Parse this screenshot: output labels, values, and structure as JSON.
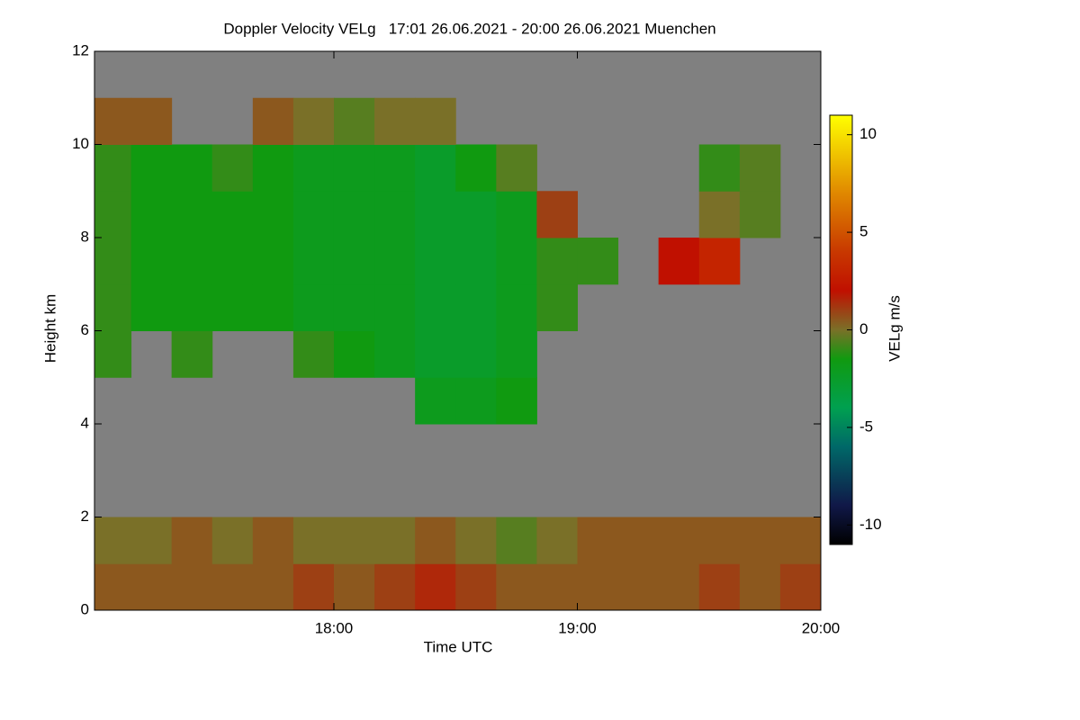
{
  "chart_data": {
    "type": "heatmap",
    "title": "Doppler Velocity VELg   17:01 26.06.2021 - 20:00 26.06.2021 Muenchen",
    "x_label": "Time UTC",
    "y_label": "Height km",
    "colorbar_label": "VELg m/s",
    "xlim": [
      17.0167,
      20.0
    ],
    "xticks": [
      {
        "value": 18,
        "label": "18:00"
      },
      {
        "value": 19,
        "label": "19:00"
      },
      {
        "value": 20,
        "label": "20:00"
      }
    ],
    "ylim": [
      0,
      12
    ],
    "yticks": [
      0,
      2,
      4,
      6,
      8,
      10,
      12
    ],
    "clim": [
      -11,
      11
    ],
    "cticks": [
      -10,
      -5,
      0,
      5,
      10
    ],
    "background": "#808080",
    "colorscale": [
      [
        -11,
        "#000000"
      ],
      [
        -9,
        "#101848"
      ],
      [
        -6,
        "#006868"
      ],
      [
        -4,
        "#00a050"
      ],
      [
        -1.5,
        "#109a10"
      ],
      [
        0,
        "#7a7028"
      ],
      [
        2,
        "#c01000"
      ],
      [
        4,
        "#c83800"
      ],
      [
        7,
        "#e08800"
      ],
      [
        11,
        "#ffff00"
      ]
    ],
    "x_edges": [
      17.0167,
      17.1667,
      17.3333,
      17.5,
      17.6667,
      17.8333,
      18,
      18.1667,
      18.3333,
      18.5,
      18.6667,
      18.8333,
      19,
      19.1667,
      19.3333,
      19.5,
      19.6667,
      19.8333,
      20
    ],
    "y_edges": [
      0,
      1,
      2,
      3,
      4,
      5,
      6,
      7,
      8,
      9,
      10,
      11,
      12
    ],
    "values": [
      [
        0.5,
        0.5,
        0.5,
        0.5,
        0.5,
        1,
        0.5,
        1,
        1.5,
        1,
        0.5,
        0.5,
        0.5,
        0.5,
        0.5,
        1,
        0.5,
        1
      ],
      [
        0,
        0,
        0.5,
        0,
        0.5,
        0,
        0,
        0,
        0.5,
        0,
        -0.5,
        0,
        0.5,
        0.5,
        0.5,
        0.5,
        0.5,
        0.5
      ],
      [
        null,
        null,
        null,
        null,
        null,
        null,
        null,
        null,
        null,
        null,
        null,
        null,
        null,
        null,
        null,
        null,
        null,
        null
      ],
      [
        null,
        null,
        null,
        null,
        null,
        null,
        null,
        null,
        null,
        null,
        null,
        null,
        null,
        null,
        null,
        null,
        null,
        null
      ],
      [
        null,
        null,
        null,
        null,
        null,
        null,
        null,
        null,
        -2,
        -2,
        -1.5,
        null,
        null,
        null,
        null,
        null,
        null,
        null
      ],
      [
        -1,
        null,
        -1,
        null,
        null,
        -1,
        -1.5,
        -2,
        -2.5,
        -2.5,
        -2,
        null,
        null,
        null,
        null,
        null,
        null,
        null
      ],
      [
        -1,
        -1.5,
        -1.5,
        -1.5,
        -1.5,
        -2,
        -2,
        -2,
        -2.5,
        -2.5,
        -2,
        -1,
        null,
        null,
        null,
        null,
        null,
        null
      ],
      [
        -1,
        -1.5,
        -1.5,
        -1.5,
        -1.5,
        -2,
        -2,
        -2,
        -2.5,
        -2.5,
        -2,
        -1,
        -1,
        null,
        2,
        3,
        null,
        null
      ],
      [
        -1,
        -1.5,
        -1.5,
        -1.5,
        -1.5,
        -2,
        -2,
        -2,
        -2.5,
        -2.5,
        -2,
        1,
        null,
        null,
        null,
        0,
        -0.5,
        null
      ],
      [
        -1,
        -1.5,
        -1.5,
        -1,
        -1.5,
        -2,
        -2,
        -2,
        -2.5,
        -1.5,
        -0.5,
        null,
        null,
        null,
        null,
        -1,
        -0.5,
        null
      ],
      [
        0.5,
        0.5,
        null,
        null,
        0.5,
        0,
        -0.5,
        0,
        0,
        null,
        null,
        null,
        null,
        null,
        null,
        null,
        null,
        null
      ],
      [
        null,
        null,
        null,
        null,
        null,
        null,
        null,
        null,
        null,
        null,
        null,
        null,
        null,
        null,
        null,
        null,
        null,
        null
      ]
    ]
  }
}
